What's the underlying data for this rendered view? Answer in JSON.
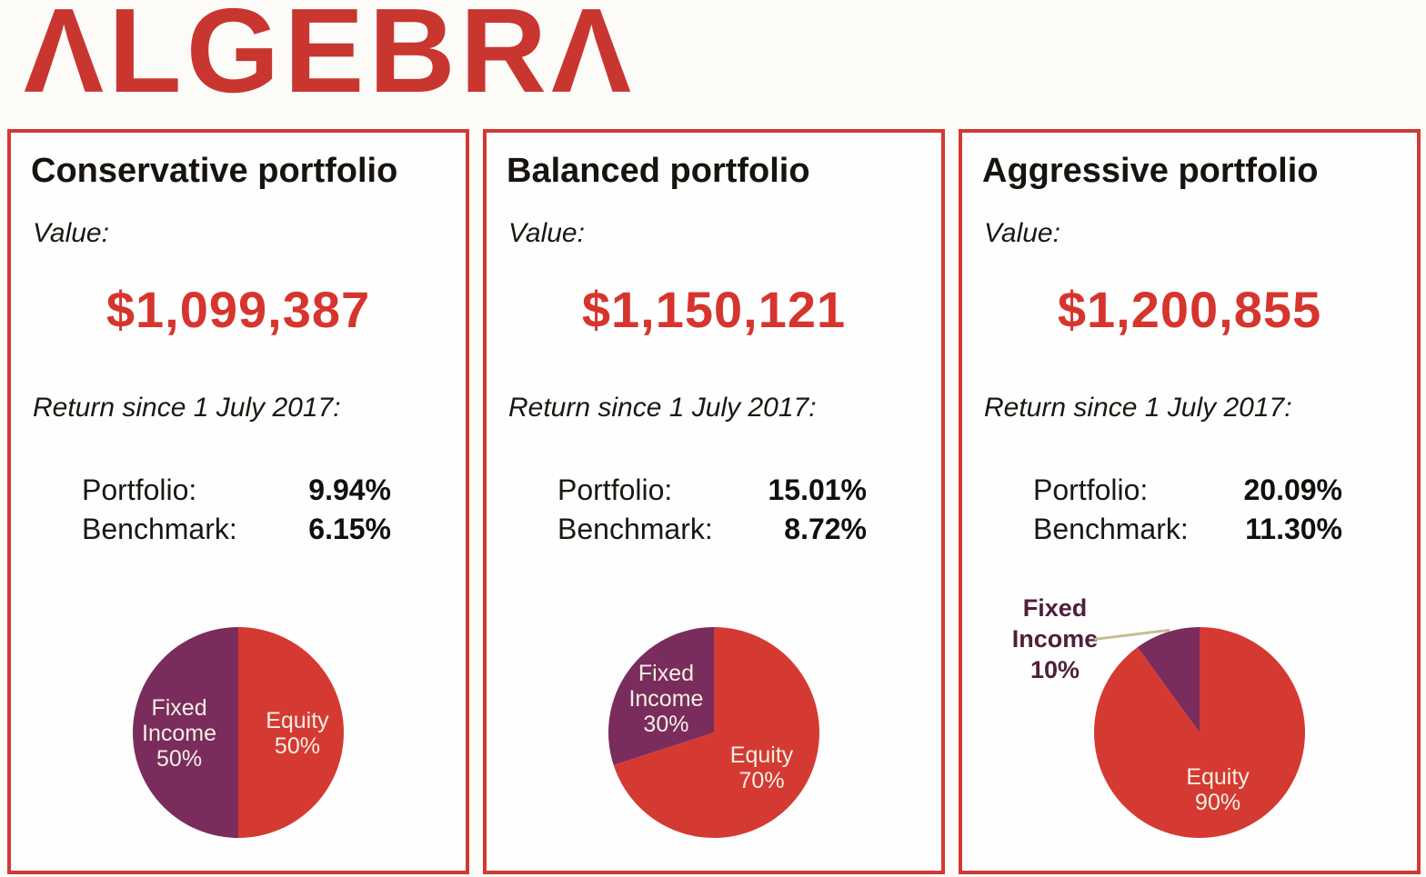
{
  "logo": {
    "text": "ALGEBRA",
    "display": "ΛLGEBRΛ"
  },
  "colors": {
    "accent_red": "#c93630",
    "value_red": "#d6352e",
    "card_border_red": "#d03a36",
    "pie_red": "#d53a32",
    "pie_purple": "#7a2c5c",
    "pie_label_cream": "#f3efe4",
    "outside_label_plum": "#4f203a",
    "leader_line_olive": "#c3bd92"
  },
  "labels": {
    "value": "Value:",
    "return_since": "Return since 1 July 2017:",
    "portfolio_row": "Portfolio:",
    "benchmark_row": "Benchmark:"
  },
  "cards": [
    {
      "title": "Conservative portfolio",
      "value": "$1,099,387",
      "portfolio_return": "9.94%",
      "benchmark_return": "6.15%"
    },
    {
      "title": "Balanced portfolio",
      "value": "$1,150,121",
      "portfolio_return": "15.01%",
      "benchmark_return": "8.72%"
    },
    {
      "title": "Aggressive portfolio",
      "value": "$1,200,855",
      "portfolio_return": "20.09%",
      "benchmark_return": "11.30%"
    }
  ],
  "chart_data": [
    {
      "type": "pie",
      "title": "Conservative portfolio",
      "units": "%",
      "start": "top",
      "direction": "clockwise",
      "legend": "none",
      "label_color": "#f3efe4",
      "slices": [
        {
          "name": "Equity",
          "value": 50,
          "color": "#d53a32",
          "label_position": "inside",
          "label_lines": [
            "Equity",
            "50%"
          ]
        },
        {
          "name": "Fixed Income",
          "value": 50,
          "color": "#7a2c5c",
          "label_position": "inside",
          "label_lines": [
            "Fixed",
            "Income",
            "50%"
          ]
        }
      ]
    },
    {
      "type": "pie",
      "title": "Balanced portfolio",
      "units": "%",
      "start": "top",
      "direction": "clockwise",
      "legend": "none",
      "label_color": "#f3efe4",
      "slices": [
        {
          "name": "Equity",
          "value": 70,
          "color": "#d53a32",
          "label_position": "inside",
          "label_lines": [
            "Equity",
            "70%"
          ]
        },
        {
          "name": "Fixed Income",
          "value": 30,
          "color": "#7a2c5c",
          "label_position": "inside",
          "label_lines": [
            "Fixed",
            "Income",
            "30%"
          ]
        }
      ]
    },
    {
      "type": "pie",
      "title": "Aggressive portfolio",
      "units": "%",
      "start": "top",
      "direction": "clockwise",
      "legend": "none",
      "label_color": "#f3efe4",
      "slices": [
        {
          "name": "Equity",
          "value": 90,
          "color": "#d53a32",
          "label_position": "inside",
          "label_lines": [
            "Equity",
            "90%"
          ]
        },
        {
          "name": "Fixed Income",
          "value": 10,
          "color": "#7a2c5c",
          "label_position": "outside",
          "label_lines": [
            "Fixed",
            "Income",
            "10%"
          ]
        }
      ]
    }
  ]
}
